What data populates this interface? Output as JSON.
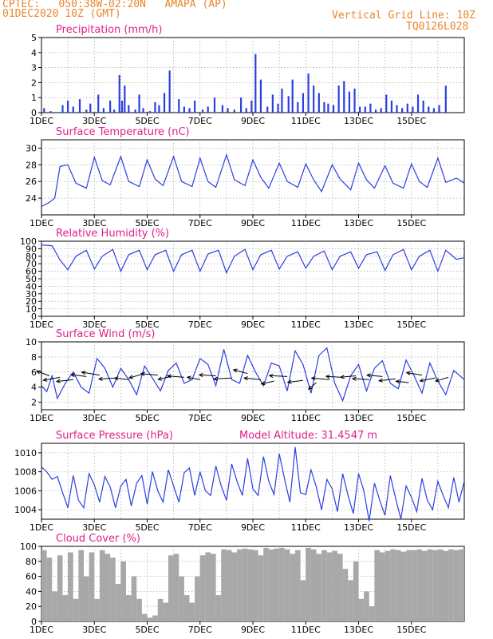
{
  "header": {
    "location": "CPTEC:   050:38W-02:20N   AMAPA (AP)",
    "date": "01DEC2020 10Z (GMT)",
    "grid_note": "Vertical Grid Line: 10Z",
    "run_code": "TQ0126L028"
  },
  "colors": {
    "header": "#e8862a",
    "title": "#e0208a",
    "series": "#2b3fe0",
    "cloud": "#a8a8a8",
    "grid": "#999999",
    "arrow": "#000000"
  },
  "chart_data": [
    {
      "id": "precip",
      "type": "bar",
      "title": "Precipitation (mm/h)",
      "ylim": [
        0,
        5
      ],
      "yticks": [
        0,
        1,
        2,
        3,
        4,
        5
      ],
      "xticks": [
        "1DEC",
        "3DEC",
        "5DEC",
        "7DEC",
        "9DEC",
        "11DEC",
        "13DEC",
        "15DEC"
      ],
      "x": [
        0.1,
        0.35,
        0.8,
        1.0,
        1.2,
        1.45,
        1.7,
        1.85,
        2.15,
        2.35,
        2.6,
        2.75,
        2.95,
        3.05,
        3.15,
        3.3,
        3.55,
        3.7,
        3.85,
        4.1,
        4.3,
        4.45,
        4.65,
        4.85,
        5.2,
        5.4,
        5.6,
        5.8,
        6.1,
        6.3,
        6.55,
        6.85,
        7.05,
        7.3,
        7.55,
        7.75,
        7.95,
        8.1,
        8.3,
        8.55,
        8.75,
        8.95,
        9.1,
        9.35,
        9.5,
        9.7,
        9.9,
        10.1,
        10.3,
        10.5,
        10.7,
        10.85,
        11.05,
        11.25,
        11.45,
        11.65,
        11.85,
        12.05,
        12.25,
        12.45,
        12.65,
        12.85,
        13.05,
        13.25,
        13.45,
        13.65,
        13.85,
        14.05,
        14.25,
        14.45,
        14.65,
        14.85,
        15.05,
        15.3
      ],
      "values": [
        0.3,
        0.1,
        0.5,
        0.8,
        0.4,
        0.9,
        0.2,
        0.6,
        1.2,
        0.3,
        0.8,
        0.2,
        2.5,
        0.8,
        1.8,
        0.5,
        0.2,
        1.2,
        0.3,
        0.1,
        0.7,
        0.5,
        1.3,
        2.8,
        0.9,
        0.4,
        0.3,
        0.8,
        0.2,
        0.4,
        1.0,
        0.5,
        0.3,
        0.2,
        1.0,
        0.3,
        0.8,
        3.9,
        2.2,
        0.4,
        1.2,
        0.6,
        1.6,
        1.1,
        2.2,
        0.7,
        1.3,
        2.6,
        1.8,
        1.3,
        0.7,
        0.6,
        0.5,
        1.8,
        2.1,
        1.4,
        1.6,
        0.4,
        0.4,
        0.6,
        0.2,
        0.3,
        1.2,
        0.8,
        0.5,
        0.3,
        0.6,
        0.4,
        1.2,
        0.8,
        0.4,
        0.3,
        0.5,
        1.8
      ]
    },
    {
      "id": "temperature",
      "type": "line",
      "title": "Surface Temperature (nC)",
      "ylim": [
        22,
        31
      ],
      "yticks": [
        24,
        26,
        28,
        30
      ],
      "xticks": [
        "1DEC",
        "3DEC",
        "5DEC",
        "7DEC",
        "9DEC",
        "11DEC",
        "13DEC",
        "15DEC"
      ],
      "x": [
        0,
        0.3,
        0.5,
        0.7,
        1.0,
        1.3,
        1.7,
        2.0,
        2.3,
        2.6,
        3.0,
        3.3,
        3.7,
        4.0,
        4.3,
        4.6,
        5.0,
        5.3,
        5.7,
        6.0,
        6.3,
        6.6,
        7.0,
        7.3,
        7.7,
        8.0,
        8.3,
        8.6,
        9.0,
        9.3,
        9.7,
        10.0,
        10.3,
        10.6,
        11.0,
        11.3,
        11.7,
        12.0,
        12.3,
        12.6,
        13.0,
        13.3,
        13.7,
        14.0,
        14.3,
        14.6,
        15.0,
        15.3,
        15.7,
        16.0
      ],
      "values": [
        23.0,
        23.5,
        24.0,
        27.8,
        28.0,
        25.8,
        25.2,
        28.9,
        26.1,
        25.6,
        29.0,
        26.0,
        25.4,
        28.6,
        26.3,
        25.5,
        29.0,
        26.0,
        25.4,
        28.8,
        26.0,
        25.3,
        29.2,
        26.2,
        25.5,
        28.6,
        26.5,
        25.2,
        28.2,
        26.0,
        25.3,
        28.1,
        26.2,
        24.8,
        28.0,
        26.3,
        25.0,
        28.2,
        26.2,
        25.2,
        27.9,
        25.8,
        25.2,
        28.1,
        26.0,
        25.3,
        28.8,
        25.9,
        26.4,
        25.8
      ]
    },
    {
      "id": "humidity",
      "type": "line",
      "title": "Relative Humidity (%)",
      "ylim": [
        0,
        100
      ],
      "yticks": [
        0,
        10,
        20,
        30,
        40,
        50,
        60,
        70,
        80,
        90,
        100
      ],
      "xticks": [
        "1DEC",
        "3DEC",
        "5DEC",
        "7DEC",
        "9DEC",
        "11DEC",
        "13DEC",
        "15DEC"
      ],
      "x": [
        0,
        0.4,
        0.7,
        1.0,
        1.3,
        1.7,
        2.0,
        2.3,
        2.7,
        3.0,
        3.3,
        3.7,
        4.0,
        4.3,
        4.7,
        5.0,
        5.3,
        5.7,
        6.0,
        6.3,
        6.7,
        7.0,
        7.3,
        7.7,
        8.0,
        8.3,
        8.7,
        9.0,
        9.3,
        9.7,
        10.0,
        10.3,
        10.7,
        11.0,
        11.3,
        11.7,
        12.0,
        12.3,
        12.7,
        13.0,
        13.3,
        13.7,
        14.0,
        14.3,
        14.7,
        15.0,
        15.3,
        15.7,
        16.0
      ],
      "values": [
        95,
        94,
        75,
        62,
        80,
        88,
        63,
        80,
        89,
        60,
        82,
        88,
        62,
        82,
        88,
        60,
        82,
        88,
        60,
        83,
        88,
        58,
        80,
        89,
        62,
        82,
        88,
        63,
        80,
        86,
        64,
        80,
        87,
        62,
        80,
        86,
        64,
        82,
        86,
        61,
        82,
        89,
        62,
        80,
        88,
        60,
        88,
        76,
        78
      ]
    },
    {
      "id": "wind",
      "type": "line",
      "title": "Surface Wind (m/s)",
      "ylim": [
        1,
        10
      ],
      "yticks": [
        2,
        4,
        6,
        8,
        10
      ],
      "xticks": [
        "1DEC",
        "3DEC",
        "5DEC",
        "7DEC",
        "9DEC",
        "11DEC",
        "13DEC",
        "15DEC"
      ],
      "x": [
        0,
        0.2,
        0.4,
        0.6,
        0.9,
        1.2,
        1.5,
        1.8,
        2.1,
        2.4,
        2.7,
        3.0,
        3.3,
        3.6,
        3.9,
        4.2,
        4.5,
        4.8,
        5.1,
        5.4,
        5.7,
        6.0,
        6.3,
        6.6,
        6.9,
        7.2,
        7.5,
        7.8,
        8.1,
        8.4,
        8.7,
        9.0,
        9.3,
        9.6,
        9.9,
        10.2,
        10.5,
        10.8,
        11.1,
        11.4,
        11.7,
        12.0,
        12.3,
        12.6,
        12.9,
        13.2,
        13.5,
        13.8,
        14.1,
        14.4,
        14.7,
        15.0,
        15.3,
        15.6,
        16.0
      ],
      "values": [
        4.2,
        3.4,
        5.5,
        2.5,
        4.5,
        6.0,
        4.0,
        3.2,
        7.8,
        6.5,
        4.0,
        6.5,
        5.0,
        3.0,
        6.8,
        5.2,
        3.5,
        6.2,
        7.2,
        4.5,
        5.0,
        7.8,
        7.0,
        4.2,
        9.0,
        5.0,
        4.5,
        8.2,
        6.0,
        4.2,
        7.2,
        6.8,
        3.5,
        8.8,
        7.0,
        3.2,
        8.2,
        9.2,
        4.5,
        2.2,
        5.5,
        7.0,
        3.5,
        6.5,
        7.5,
        4.5,
        3.8,
        7.6,
        5.5,
        3.2,
        7.2,
        4.8,
        3.0,
        6.2,
        5.0
      ],
      "arrows": [
        [
          0.3,
          5.5,
          -1,
          1.0
        ],
        [
          0.7,
          5.3,
          -1.3,
          -0.6
        ],
        [
          1.2,
          5.0,
          -1.3,
          -0.4
        ],
        [
          1.7,
          5.4,
          -1.2,
          0.4
        ],
        [
          2.2,
          5.6,
          -1.4,
          0.6
        ],
        [
          2.8,
          5.2,
          -1.3,
          -0.2
        ],
        [
          3.3,
          5.0,
          -1.1,
          0.3
        ],
        [
          3.9,
          5.8,
          -1.2,
          -0.9
        ],
        [
          4.4,
          5.6,
          -1.3,
          0.3
        ],
        [
          4.9,
          5.4,
          -1.0,
          -0.6
        ],
        [
          5.4,
          5.3,
          -1.3,
          0.3
        ],
        [
          6.0,
          5.0,
          -1.0,
          0.5
        ],
        [
          6.6,
          5.5,
          -1.3,
          0.2
        ],
        [
          7.2,
          5.2,
          -1.4,
          -0.2
        ],
        [
          7.8,
          5.8,
          -1.1,
          0.8
        ],
        [
          8.3,
          5.0,
          -1.3,
          0.3
        ],
        [
          8.8,
          4.8,
          -1.0,
          -0.6
        ],
        [
          9.3,
          5.4,
          -1.4,
          0.2
        ],
        [
          9.9,
          4.9,
          -1.2,
          -0.4
        ],
        [
          10.4,
          4.6,
          -0.6,
          -1.4
        ],
        [
          10.9,
          5.0,
          -1.4,
          0.3
        ],
        [
          11.4,
          5.3,
          -1.3,
          0.2
        ],
        [
          11.9,
          5.5,
          -1.2,
          -0.3
        ],
        [
          12.4,
          5.0,
          -1.3,
          0.2
        ],
        [
          12.9,
          5.4,
          -1.2,
          0.3
        ],
        [
          13.4,
          5.1,
          -1.3,
          -0.4
        ],
        [
          13.9,
          4.6,
          -1.0,
          0.3
        ],
        [
          14.4,
          5.6,
          -1.2,
          0.5
        ],
        [
          14.9,
          5.2,
          -1.2,
          -0.6
        ],
        [
          15.4,
          5.3,
          -1.0,
          -0.8
        ]
      ]
    },
    {
      "id": "pressure",
      "type": "line",
      "title": "Surface Pressure (hPa)",
      "annotation": "Model Altitude: 31.4547 m",
      "ylim": [
        1003,
        1011
      ],
      "yticks": [
        1004,
        1006,
        1008,
        1010
      ],
      "xticks": [
        "1DEC",
        "3DEC",
        "5DEC",
        "7DEC",
        "9DEC",
        "11DEC",
        "13DEC",
        "15DEC"
      ],
      "x": [
        0,
        0.2,
        0.4,
        0.6,
        0.8,
        1.0,
        1.2,
        1.4,
        1.6,
        1.8,
        2.0,
        2.2,
        2.4,
        2.6,
        2.8,
        3.0,
        3.2,
        3.4,
        3.6,
        3.8,
        4.0,
        4.2,
        4.4,
        4.6,
        4.8,
        5.0,
        5.2,
        5.4,
        5.6,
        5.8,
        6.0,
        6.2,
        6.4,
        6.6,
        6.8,
        7.0,
        7.2,
        7.4,
        7.6,
        7.8,
        8.0,
        8.2,
        8.4,
        8.6,
        8.8,
        9.0,
        9.2,
        9.4,
        9.6,
        9.8,
        10.0,
        10.2,
        10.4,
        10.6,
        10.8,
        11.0,
        11.2,
        11.4,
        11.6,
        11.8,
        12.0,
        12.2,
        12.4,
        12.6,
        12.8,
        13.0,
        13.2,
        13.4,
        13.6,
        13.8,
        14.0,
        14.2,
        14.4,
        14.6,
        14.8,
        15.0,
        15.2,
        15.4,
        15.6,
        15.8,
        16.0
      ],
      "values": [
        1008.5,
        1008.0,
        1007.2,
        1007.5,
        1005.8,
        1004.2,
        1007.6,
        1005.0,
        1004.2,
        1007.8,
        1006.6,
        1004.8,
        1007.5,
        1006.4,
        1004.2,
        1006.5,
        1007.2,
        1004.4,
        1006.8,
        1007.6,
        1004.6,
        1008.0,
        1006.0,
        1004.8,
        1008.2,
        1006.5,
        1004.8,
        1007.9,
        1008.4,
        1005.5,
        1008.0,
        1006.0,
        1005.5,
        1008.6,
        1006.5,
        1005.0,
        1008.8,
        1007.0,
        1005.5,
        1009.4,
        1006.2,
        1005.5,
        1009.6,
        1007.0,
        1005.6,
        1009.9,
        1007.2,
        1004.8,
        1010.6,
        1005.8,
        1005.6,
        1008.2,
        1006.4,
        1004.0,
        1007.2,
        1006.2,
        1003.8,
        1007.8,
        1005.5,
        1003.6,
        1007.8,
        1006.0,
        1002.8,
        1006.8,
        1005.0,
        1003.4,
        1007.6,
        1005.2,
        1003.0,
        1006.5,
        1005.3,
        1003.8,
        1007.3,
        1005.0,
        1004.0,
        1007.0,
        1005.5,
        1004.2,
        1007.4,
        1004.8,
        1007.0
      ]
    },
    {
      "id": "cloud",
      "type": "bar",
      "title": "Cloud Cover (%)",
      "ylim": [
        0,
        100
      ],
      "yticks": [
        0,
        20,
        40,
        60,
        80,
        100
      ],
      "xticks": [
        "1DEC",
        "3DEC",
        "5DEC",
        "7DEC",
        "9DEC",
        "11DEC",
        "13DEC",
        "15DEC"
      ],
      "x": [
        0.0,
        0.2,
        0.4,
        0.6,
        0.8,
        1.0,
        1.2,
        1.4,
        1.6,
        1.8,
        2.0,
        2.2,
        2.4,
        2.6,
        2.8,
        3.0,
        3.2,
        3.4,
        3.6,
        3.8,
        4.0,
        4.2,
        4.4,
        4.6,
        4.8,
        5.0,
        5.2,
        5.4,
        5.6,
        5.8,
        6.0,
        6.2,
        6.4,
        6.6,
        6.8,
        7.0,
        7.2,
        7.4,
        7.6,
        7.8,
        8.0,
        8.2,
        8.4,
        8.6,
        8.8,
        9.0,
        9.2,
        9.4,
        9.6,
        9.8,
        10.0,
        10.2,
        10.4,
        10.6,
        10.8,
        11.0,
        11.2,
        11.4,
        11.6,
        11.8,
        12.0,
        12.2,
        12.4,
        12.6,
        12.8,
        13.0,
        13.2,
        13.4,
        13.6,
        13.8,
        14.0,
        14.2,
        14.4,
        14.6,
        14.8,
        15.0,
        15.2,
        15.4,
        15.6,
        15.8
      ],
      "values": [
        95,
        85,
        40,
        88,
        35,
        92,
        30,
        95,
        60,
        92,
        30,
        95,
        90,
        85,
        50,
        80,
        35,
        60,
        30,
        10,
        5,
        8,
        30,
        25,
        88,
        90,
        60,
        35,
        25,
        60,
        88,
        92,
        90,
        35,
        96,
        95,
        92,
        96,
        97,
        96,
        95,
        88,
        98,
        96,
        97,
        98,
        96,
        90,
        95,
        55,
        98,
        96,
        90,
        95,
        92,
        94,
        90,
        70,
        55,
        80,
        30,
        40,
        20,
        95,
        92,
        94,
        96,
        95,
        93,
        95,
        95,
        96,
        94,
        96,
        95,
        96,
        94,
        96,
        95,
        96
      ]
    }
  ]
}
